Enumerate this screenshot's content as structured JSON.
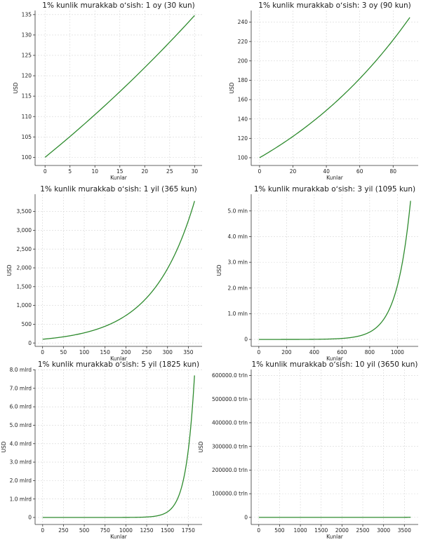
{
  "line_color": "#2e8b2e",
  "chart_data": [
    {
      "type": "line",
      "title": "1% kunlik murakkab oʻsish: 1 oy (30 kun)",
      "xlabel": "Kunlar",
      "ylabel": "USD",
      "days": 30,
      "start_value": 100,
      "daily_rate": 0.01,
      "xlim": [
        -2,
        31.5
      ],
      "ylim": [
        98,
        136
      ],
      "x_ticks": [
        0,
        5,
        10,
        15,
        20,
        25,
        30
      ],
      "x_tick_labels": [
        "0",
        "5",
        "10",
        "15",
        "20",
        "25",
        "30"
      ],
      "y_ticks": [
        100,
        105,
        110,
        115,
        120,
        125,
        130,
        135
      ],
      "y_tick_labels": [
        "100",
        "105",
        "110",
        "115",
        "120",
        "125",
        "130",
        "135"
      ],
      "grid": true
    },
    {
      "type": "line",
      "title": "1% kunlik murakkab oʻsish: 3 oy (90 kun)",
      "xlabel": "Kunlar",
      "ylabel": "USD",
      "days": 90,
      "start_value": 100,
      "daily_rate": 0.01,
      "xlim": [
        -5,
        95
      ],
      "ylim": [
        92,
        252
      ],
      "x_ticks": [
        0,
        20,
        40,
        60,
        80
      ],
      "x_tick_labels": [
        "0",
        "20",
        "40",
        "60",
        "80"
      ],
      "y_ticks": [
        100,
        120,
        140,
        160,
        180,
        200,
        220,
        240
      ],
      "y_tick_labels": [
        "100",
        "120",
        "140",
        "160",
        "180",
        "200",
        "220",
        "240"
      ],
      "grid": true
    },
    {
      "type": "line",
      "title": "1% kunlik murakkab oʻsish: 1 yil (365 kun)",
      "xlabel": "Kunlar",
      "ylabel": "USD",
      "days": 365,
      "start_value": 100,
      "daily_rate": 0.01,
      "xlim": [
        -18,
        383
      ],
      "ylim": [
        -90,
        3960
      ],
      "x_ticks": [
        0,
        50,
        100,
        150,
        200,
        250,
        300,
        350
      ],
      "x_tick_labels": [
        "0",
        "50",
        "100",
        "150",
        "200",
        "250",
        "300",
        "350"
      ],
      "y_ticks": [
        0,
        500,
        1000,
        1500,
        2000,
        2500,
        3000,
        3500
      ],
      "y_tick_labels": [
        "0",
        "500",
        "1,000",
        "1,500",
        "2,000",
        "2,500",
        "3,000",
        "3,500"
      ],
      "grid": true
    },
    {
      "type": "line",
      "title": "1% kunlik murakkab oʻsish: 3 yil (1095 kun)",
      "xlabel": "Kunlar",
      "ylabel": "USD",
      "days": 1095,
      "start_value": 100,
      "daily_rate": 0.01,
      "xlim": [
        -55,
        1150
      ],
      "ylim": [
        -270000,
        5650000
      ],
      "x_ticks": [
        0,
        200,
        400,
        600,
        800,
        1000
      ],
      "x_tick_labels": [
        "0",
        "200",
        "400",
        "600",
        "800",
        "1000"
      ],
      "y_ticks": [
        0,
        1000000,
        2000000,
        3000000,
        4000000,
        5000000
      ],
      "y_tick_labels": [
        "0",
        "1.0 mln",
        "2.0 mln",
        "3.0 mln",
        "4.0 mln",
        "5.0 mln"
      ],
      "grid": true
    },
    {
      "type": "line",
      "title": "1% kunlik murakkab oʻsish: 5 yil (1825 kun)",
      "xlabel": "Kunlar",
      "ylabel": "USD",
      "days": 1825,
      "start_value": 100,
      "daily_rate": 0.01,
      "xlim": [
        -91,
        1916
      ],
      "ylim": [
        -380000000,
        8020000000
      ],
      "x_ticks": [
        0,
        250,
        500,
        750,
        1000,
        1250,
        1500,
        1750
      ],
      "x_tick_labels": [
        "0",
        "250",
        "500",
        "750",
        "1000",
        "1250",
        "1500",
        "1750"
      ],
      "y_ticks": [
        0,
        1000000000,
        2000000000,
        3000000000,
        4000000000,
        5000000000,
        6000000000,
        7000000000,
        8000000000
      ],
      "y_tick_labels": [
        "0",
        "1.0 mlrd",
        "2.0 mlrd",
        "3.0 mlrd",
        "4.0 mlrd",
        "5.0 mlrd",
        "6.0 mlrd",
        "7.0 mlrd",
        "8.0 mlrd"
      ],
      "grid": true
    },
    {
      "type": "line",
      "title": "1% kunlik murakkab oʻsish: 10 yil (3650 kun)",
      "xlabel": "Kunlar",
      "ylabel": "USD",
      "days": 3650,
      "start_value": 100,
      "daily_rate": 0.01,
      "xlim": [
        -182,
        3832
      ],
      "ylim": [
        -3e+19,
        6.25e+20
      ],
      "x_ticks": [
        0,
        500,
        1000,
        1500,
        2000,
        2500,
        3000,
        3500
      ],
      "x_tick_labels": [
        "0",
        "500",
        "1000",
        "1500",
        "2000",
        "2500",
        "3000",
        "3500"
      ],
      "y_ticks": [
        0,
        1e+20,
        2e+20,
        3e+20,
        4e+20,
        5e+20,
        6e+20
      ],
      "y_tick_labels": [
        "0",
        "100000.0 trln",
        "200000.0 trln",
        "300000.0 trln",
        "400000.0 trln",
        "500000.0 trln",
        "600000.0 trln"
      ],
      "grid": true
    }
  ]
}
